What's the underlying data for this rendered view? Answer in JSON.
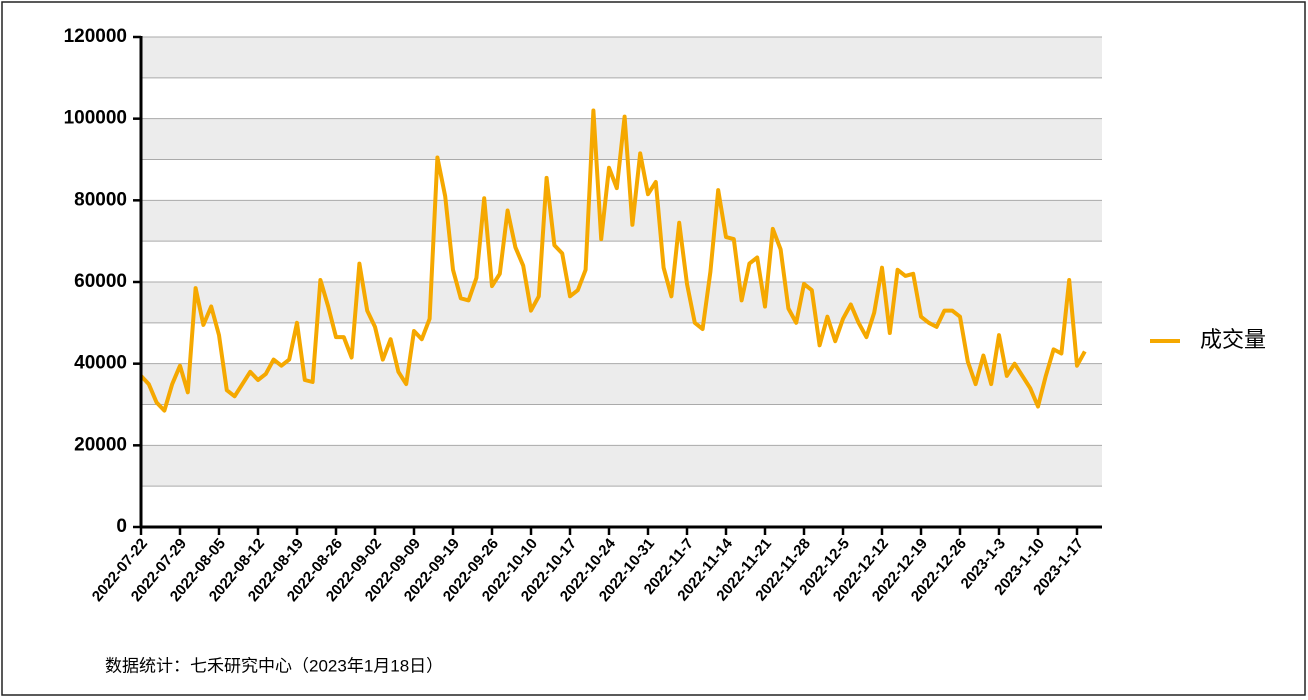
{
  "chart_data": {
    "type": "line",
    "source": "数据统计：七禾研究中心（2023年1月18日）",
    "categories": [
      "2022-07-22",
      null,
      null,
      null,
      null,
      "2022-07-29",
      null,
      null,
      null,
      null,
      "2022-08-05",
      null,
      null,
      null,
      null,
      "2022-08-12",
      null,
      null,
      null,
      null,
      "2022-08-19",
      null,
      null,
      null,
      null,
      "2022-08-26",
      null,
      null,
      null,
      null,
      "2022-09-02",
      null,
      null,
      null,
      null,
      "2022-09-09",
      null,
      null,
      null,
      null,
      "2022-09-19",
      null,
      null,
      null,
      null,
      "2022-09-26",
      null,
      null,
      null,
      null,
      "2022-10-10",
      null,
      null,
      null,
      null,
      "2022-10-17",
      null,
      null,
      null,
      null,
      "2022-10-24",
      null,
      null,
      null,
      null,
      "2022-10-31",
      null,
      null,
      null,
      null,
      "2022-11-7",
      null,
      null,
      null,
      null,
      "2022-11-14",
      null,
      null,
      null,
      null,
      "2022-11-21",
      null,
      null,
      null,
      null,
      "2022-11-28",
      null,
      null,
      null,
      null,
      "2022-12-5",
      null,
      null,
      null,
      null,
      "2022-12-12",
      null,
      null,
      null,
      null,
      "2022-12-19",
      null,
      null,
      null,
      null,
      "2022-12-26",
      null,
      null,
      null,
      null,
      "2023-1-3",
      null,
      null,
      null,
      null,
      "2023-1-10",
      null,
      null,
      null,
      null,
      "2023-1-17",
      null
    ],
    "series": [
      {
        "name": "成交量",
        "color": "#f5a800",
        "values": [
          37000,
          35000,
          30500,
          28500,
          35000,
          39500,
          33000,
          58500,
          49500,
          54000,
          47000,
          33500,
          32000,
          35000,
          38000,
          36000,
          37500,
          41000,
          39500,
          41000,
          50000,
          36000,
          35500,
          60500,
          54000,
          46500,
          46500,
          41500,
          64500,
          53000,
          49000,
          41000,
          46000,
          38000,
          35000,
          48000,
          46000,
          51000,
          90500,
          81000,
          63000,
          56000,
          55500,
          61000,
          80500,
          59000,
          62000,
          77500,
          68500,
          64000,
          53000,
          56500,
          85500,
          69000,
          67000,
          56500,
          58000,
          63000,
          102000,
          70500,
          88000,
          83000,
          100500,
          74000,
          91500,
          81500,
          84500,
          63500,
          56500,
          74500,
          59500,
          50000,
          48500,
          62500,
          82500,
          71000,
          70500,
          55500,
          64500,
          66000,
          54000,
          73000,
          68000,
          53500,
          50000,
          59500,
          58000,
          44500,
          51500,
          45500,
          51000,
          54500,
          50000,
          46500,
          52500,
          63500,
          47500,
          63000,
          61500,
          62000,
          51500,
          50000,
          49000,
          53000,
          53000,
          51500,
          40500,
          35000,
          42000,
          35000,
          47000,
          37000,
          40000,
          37000,
          34000,
          29500,
          37000,
          43500,
          42500,
          60500,
          39500,
          43000
        ]
      }
    ],
    "ylim": [
      0,
      120000
    ],
    "yticks": [
      0,
      20000,
      40000,
      60000,
      80000,
      100000,
      120000
    ],
    "grid": true,
    "legend": "right"
  }
}
